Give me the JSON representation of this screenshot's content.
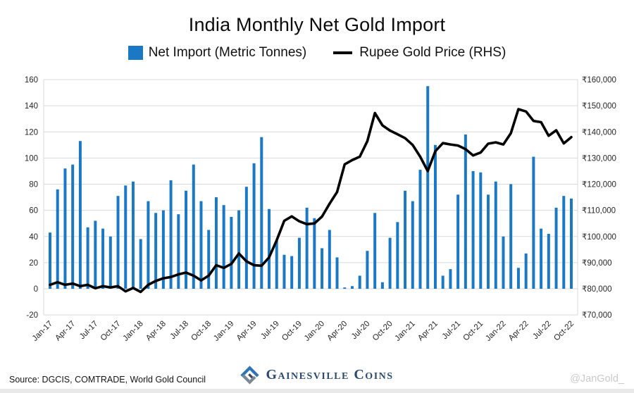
{
  "title": "India Monthly Net Gold Import",
  "legend": {
    "bar_label": "Net Import (Metric Tonnes)",
    "line_label": "Rupee Gold Price (RHS)"
  },
  "chart_data": {
    "type": "bar+line combo",
    "categories": [
      "Jan-17",
      "Feb-17",
      "Mar-17",
      "Apr-17",
      "May-17",
      "Jun-17",
      "Jul-17",
      "Aug-17",
      "Sep-17",
      "Oct-17",
      "Nov-17",
      "Dec-17",
      "Jan-18",
      "Feb-18",
      "Mar-18",
      "Apr-18",
      "May-18",
      "Jun-18",
      "Jul-18",
      "Aug-18",
      "Sep-18",
      "Oct-18",
      "Nov-18",
      "Dec-18",
      "Jan-19",
      "Feb-19",
      "Mar-19",
      "Apr-19",
      "May-19",
      "Jun-19",
      "Jul-19",
      "Aug-19",
      "Sep-19",
      "Oct-19",
      "Nov-19",
      "Dec-19",
      "Jan-20",
      "Feb-20",
      "Mar-20",
      "Apr-20",
      "May-20",
      "Jun-20",
      "Jul-20",
      "Aug-20",
      "Sep-20",
      "Oct-20",
      "Nov-20",
      "Dec-20",
      "Jan-21",
      "Feb-21",
      "Mar-21",
      "Apr-21",
      "May-21",
      "Jun-21",
      "Jul-21",
      "Aug-21",
      "Sep-21",
      "Oct-21",
      "Nov-21",
      "Dec-21",
      "Jan-22",
      "Feb-22",
      "Mar-22",
      "Apr-22",
      "May-22",
      "Jun-22",
      "Jul-22",
      "Aug-22",
      "Sep-22",
      "Oct-22"
    ],
    "x_tick_every": 3,
    "series": [
      {
        "name": "Net Import (Metric Tonnes)",
        "type": "bar",
        "axis": "left",
        "color": "#1b78c4",
        "values": [
          43,
          76,
          92,
          95,
          113,
          47,
          52,
          46,
          40,
          71,
          79,
          82,
          38,
          67,
          58,
          60,
          83,
          57,
          75,
          95,
          67,
          45,
          70,
          64,
          55,
          60,
          78,
          96,
          116,
          61,
          37,
          26,
          25,
          39,
          62,
          54,
          31,
          45,
          24,
          1,
          2,
          10,
          29,
          58,
          5,
          39,
          51,
          75,
          67,
          91,
          155,
          110,
          10,
          15,
          72,
          118,
          90,
          89,
          72,
          82,
          40,
          80,
          16,
          27,
          101,
          46,
          42,
          62,
          71,
          69
        ]
      },
      {
        "name": "Rupee Gold Price (RHS)",
        "type": "line",
        "axis": "right",
        "color": "#000000",
        "values": [
          81500,
          82500,
          81500,
          82000,
          81000,
          81500,
          80200,
          81000,
          80500,
          81000,
          79000,
          80300,
          78800,
          81500,
          83000,
          84000,
          84500,
          85500,
          86200,
          85000,
          83200,
          85000,
          89000,
          88000,
          89500,
          93500,
          90500,
          89000,
          88800,
          92000,
          98500,
          106000,
          107700,
          105800,
          104700,
          105000,
          107600,
          112500,
          117000,
          127600,
          129200,
          130500,
          136400,
          147200,
          142500,
          140500,
          139100,
          137600,
          135000,
          130500,
          125000,
          132600,
          135700,
          135200,
          134800,
          133400,
          131000,
          132100,
          135500,
          136000,
          135200,
          139500,
          148700,
          147800,
          144200,
          143700,
          138500,
          140600,
          135600,
          138000
        ]
      }
    ],
    "left_axis": {
      "min": -20,
      "max": 160,
      "step": 20
    },
    "right_axis": {
      "min": 70000,
      "max": 160000,
      "step": 10000,
      "prefix": "₹"
    },
    "gridlines": "horizontal, light gray",
    "legend_position": "top center"
  },
  "colors": {
    "bar": "#1b78c4",
    "line": "#000000",
    "grid": "#d9d9d9",
    "axis_text": "#262626",
    "brand_navy": "#2b4a6f",
    "brand_blue": "#2e75b6",
    "brand_gray": "#7c8894",
    "handle_gray": "#c9c9c9"
  },
  "footer": {
    "source": "Source: DGCIS, COMTRADE, World Gold Council",
    "brand": "Gainesville Coins",
    "handle": "@JanGold_"
  }
}
